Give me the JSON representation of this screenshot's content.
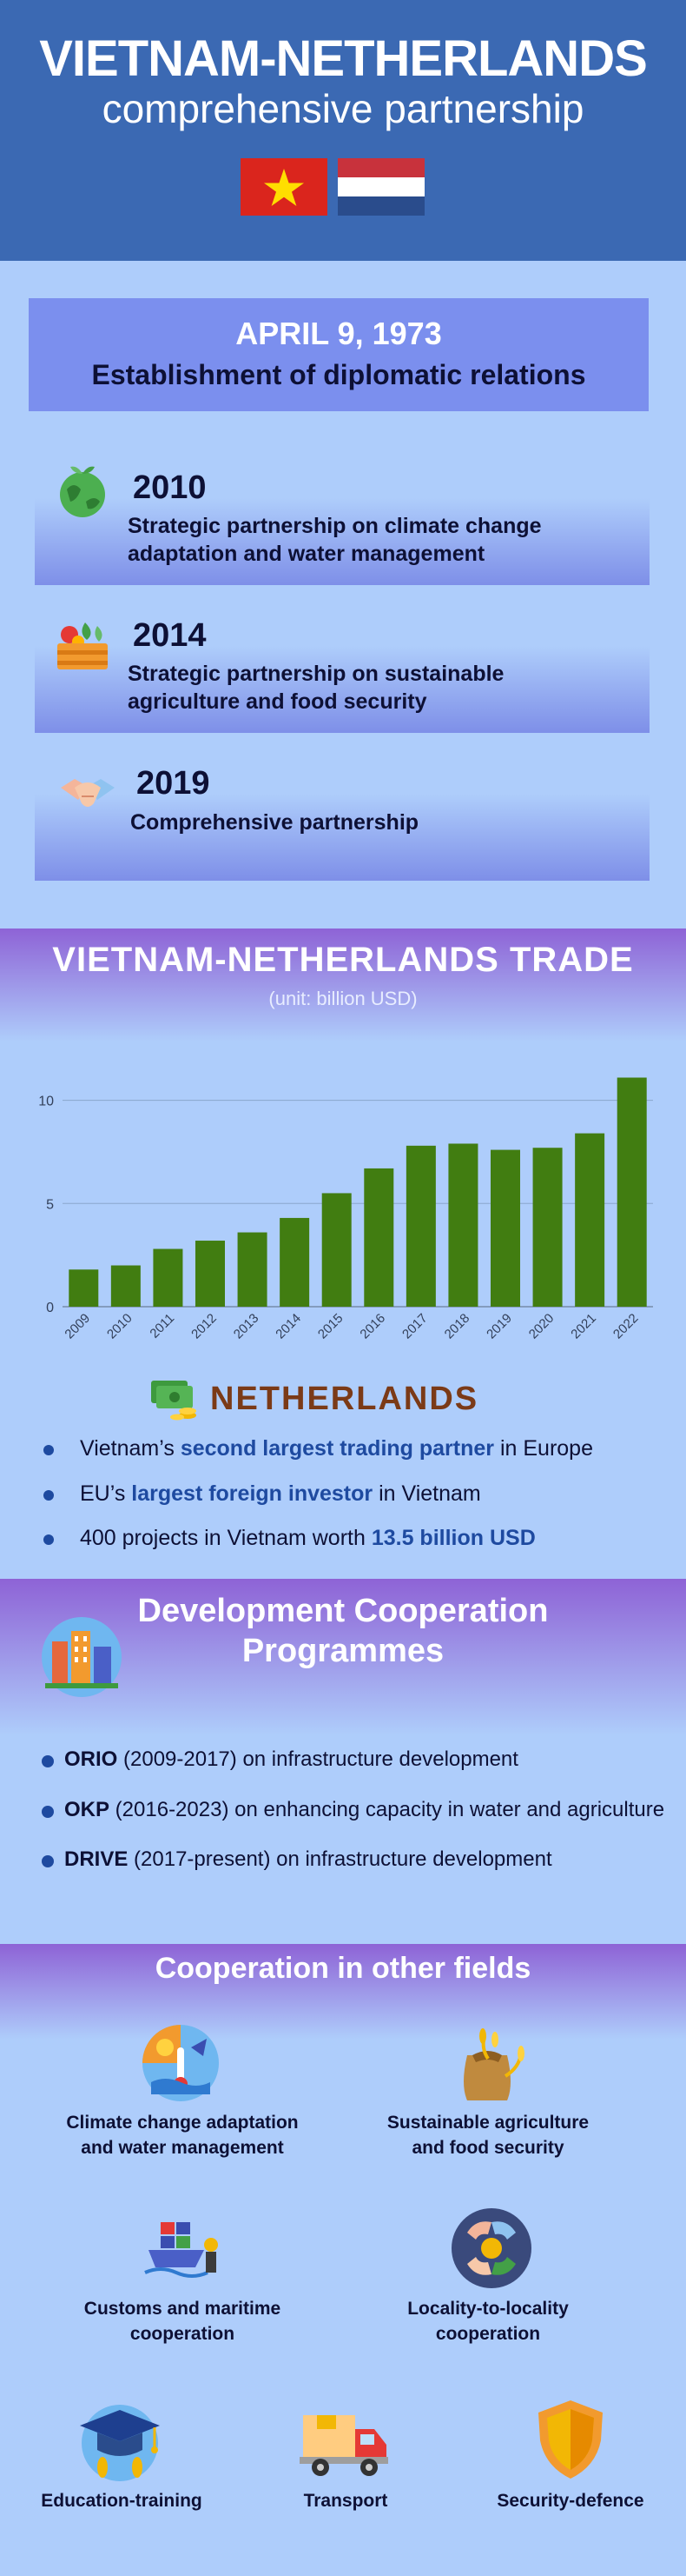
{
  "header": {
    "title": "VIETNAM-NETHERLANDS",
    "subtitle": "comprehensive partnership"
  },
  "establishment": {
    "date": "APRIL 9, 1973",
    "text": "Establishment of diplomatic relations"
  },
  "timeline": [
    {
      "year": "2010",
      "line1": "Strategic partnership on climate change",
      "line2": "adaptation and water management",
      "icon": "globe-plant-icon"
    },
    {
      "year": "2014",
      "line1": "Strategic partnership on sustainable",
      "line2": "agriculture and food security",
      "icon": "vegetable-crate-icon"
    },
    {
      "year": "2019",
      "line1": "Comprehensive partnership",
      "line2": "",
      "icon": "handshake-icon"
    }
  ],
  "trade": {
    "title": "VIETNAM-NETHERLANDS TRADE",
    "unit": "(unit: billion USD)"
  },
  "chart_data": {
    "type": "bar",
    "categories": [
      "2009",
      "2010",
      "2011",
      "2012",
      "2013",
      "2014",
      "2015",
      "2016",
      "2017",
      "2018",
      "2019",
      "2020",
      "2021",
      "2022"
    ],
    "values": [
      1.8,
      2.0,
      2.8,
      3.2,
      3.6,
      4.3,
      5.5,
      6.7,
      7.8,
      7.9,
      7.6,
      7.7,
      8.4,
      11.1
    ],
    "yticks": [
      0,
      5,
      10
    ],
    "ylim": [
      0,
      11.5
    ],
    "bar_color": "#417d11",
    "title": "",
    "xlabel": "",
    "ylabel": ""
  },
  "netherlands": {
    "title": "NETHERLANDS",
    "bullets": [
      {
        "pre": "Vietnam’s ",
        "bold": "second largest trading partner",
        "post": " in Europe"
      },
      {
        "pre": "EU’s ",
        "bold": "largest foreign investor",
        "post": " in Vietnam"
      },
      {
        "pre": "400 projects in Vietnam worth ",
        "bold": "13.5 billion USD",
        "post": ""
      }
    ]
  },
  "programmes": {
    "title_line1": "Development Cooperation",
    "title_line2": "Programmes",
    "items": [
      {
        "bold": "ORIO",
        "text": " (2009-2017) on infrastructure development"
      },
      {
        "bold": "OKP",
        "text": " (2016-2023) on enhancing capacity in water and agriculture"
      },
      {
        "bold": "DRIVE",
        "text": " (2017-present) on infrastructure development"
      }
    ]
  },
  "fields": {
    "title": "Cooperation in other fields",
    "items": [
      {
        "line1": "Climate change adaptation",
        "line2": "and water management",
        "icon": "climate-icon"
      },
      {
        "line1": "Sustainable agriculture",
        "line2": "and food security",
        "icon": "wheat-sack-icon"
      },
      {
        "line1": "Customs and maritime",
        "line2": "cooperation",
        "icon": "cargo-ship-icon"
      },
      {
        "line1": "Locality-to-locality",
        "line2": "cooperation",
        "icon": "linked-hands-icon"
      },
      {
        "line1": "Education-training",
        "line2": "",
        "icon": "graduation-cap-icon"
      },
      {
        "line1": "Transport",
        "line2": "",
        "icon": "truck-icon"
      },
      {
        "line1": "Security-defence",
        "line2": "",
        "icon": "shield-icon"
      }
    ]
  },
  "colors": {
    "header_bg": "#3b69b3",
    "page_bg": "#aecdfb",
    "accent_blue": "#1e4aa0",
    "bar_green": "#417d11",
    "nl_brown": "#7b3a17"
  }
}
